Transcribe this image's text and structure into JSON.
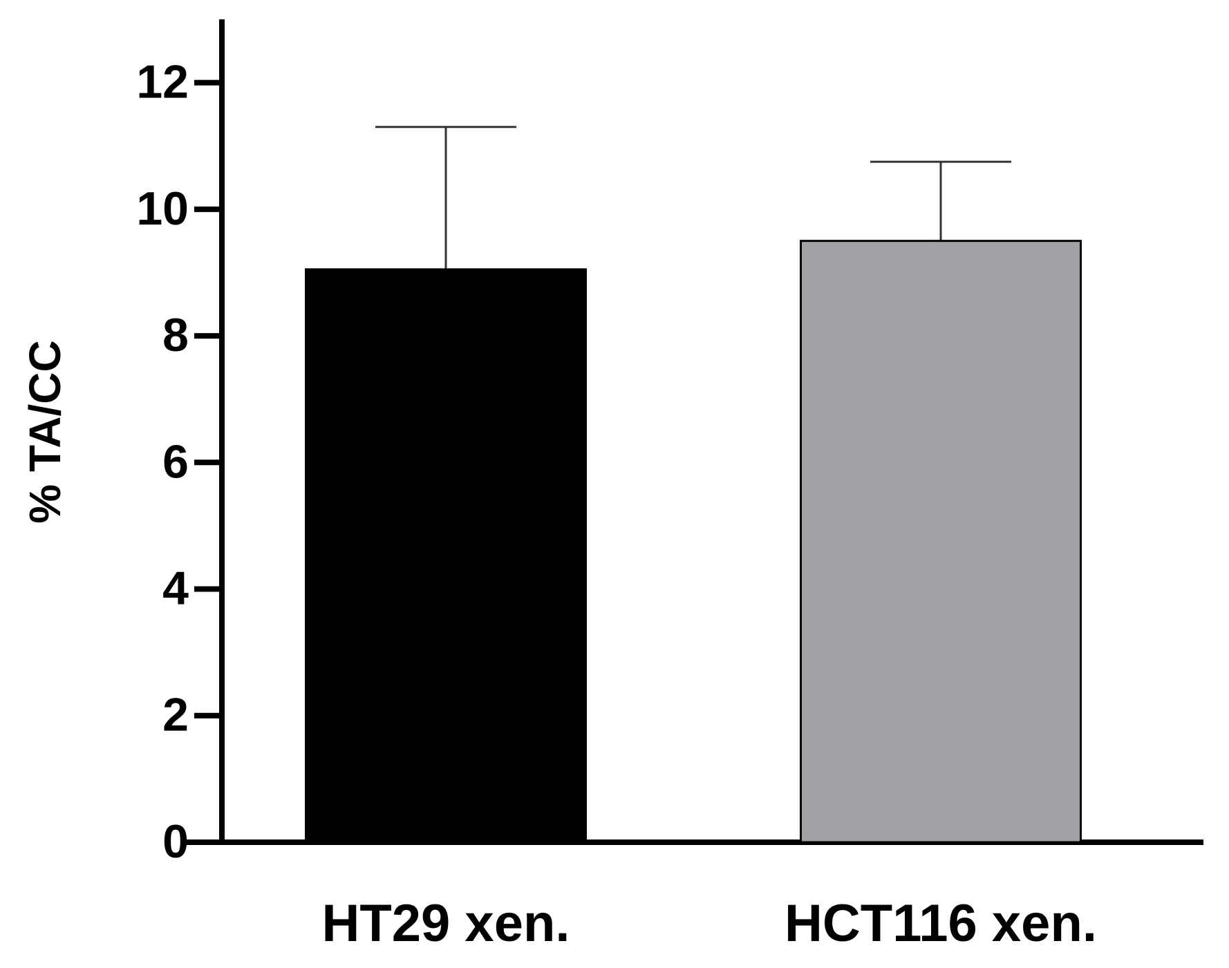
{
  "chart_data": {
    "type": "bar",
    "y_label": "% TA/CC",
    "categories": [
      "HT29 xen.",
      "HCT116 xen."
    ],
    "values": [
      9.05,
      9.5
    ],
    "errors": [
      2.25,
      1.25
    ],
    "colors": [
      "#000000",
      "#a2a1a6"
    ],
    "ylim": [
      0,
      13
    ],
    "yticks": [
      0,
      2,
      4,
      6,
      8,
      10,
      12
    ],
    "grid": false
  }
}
